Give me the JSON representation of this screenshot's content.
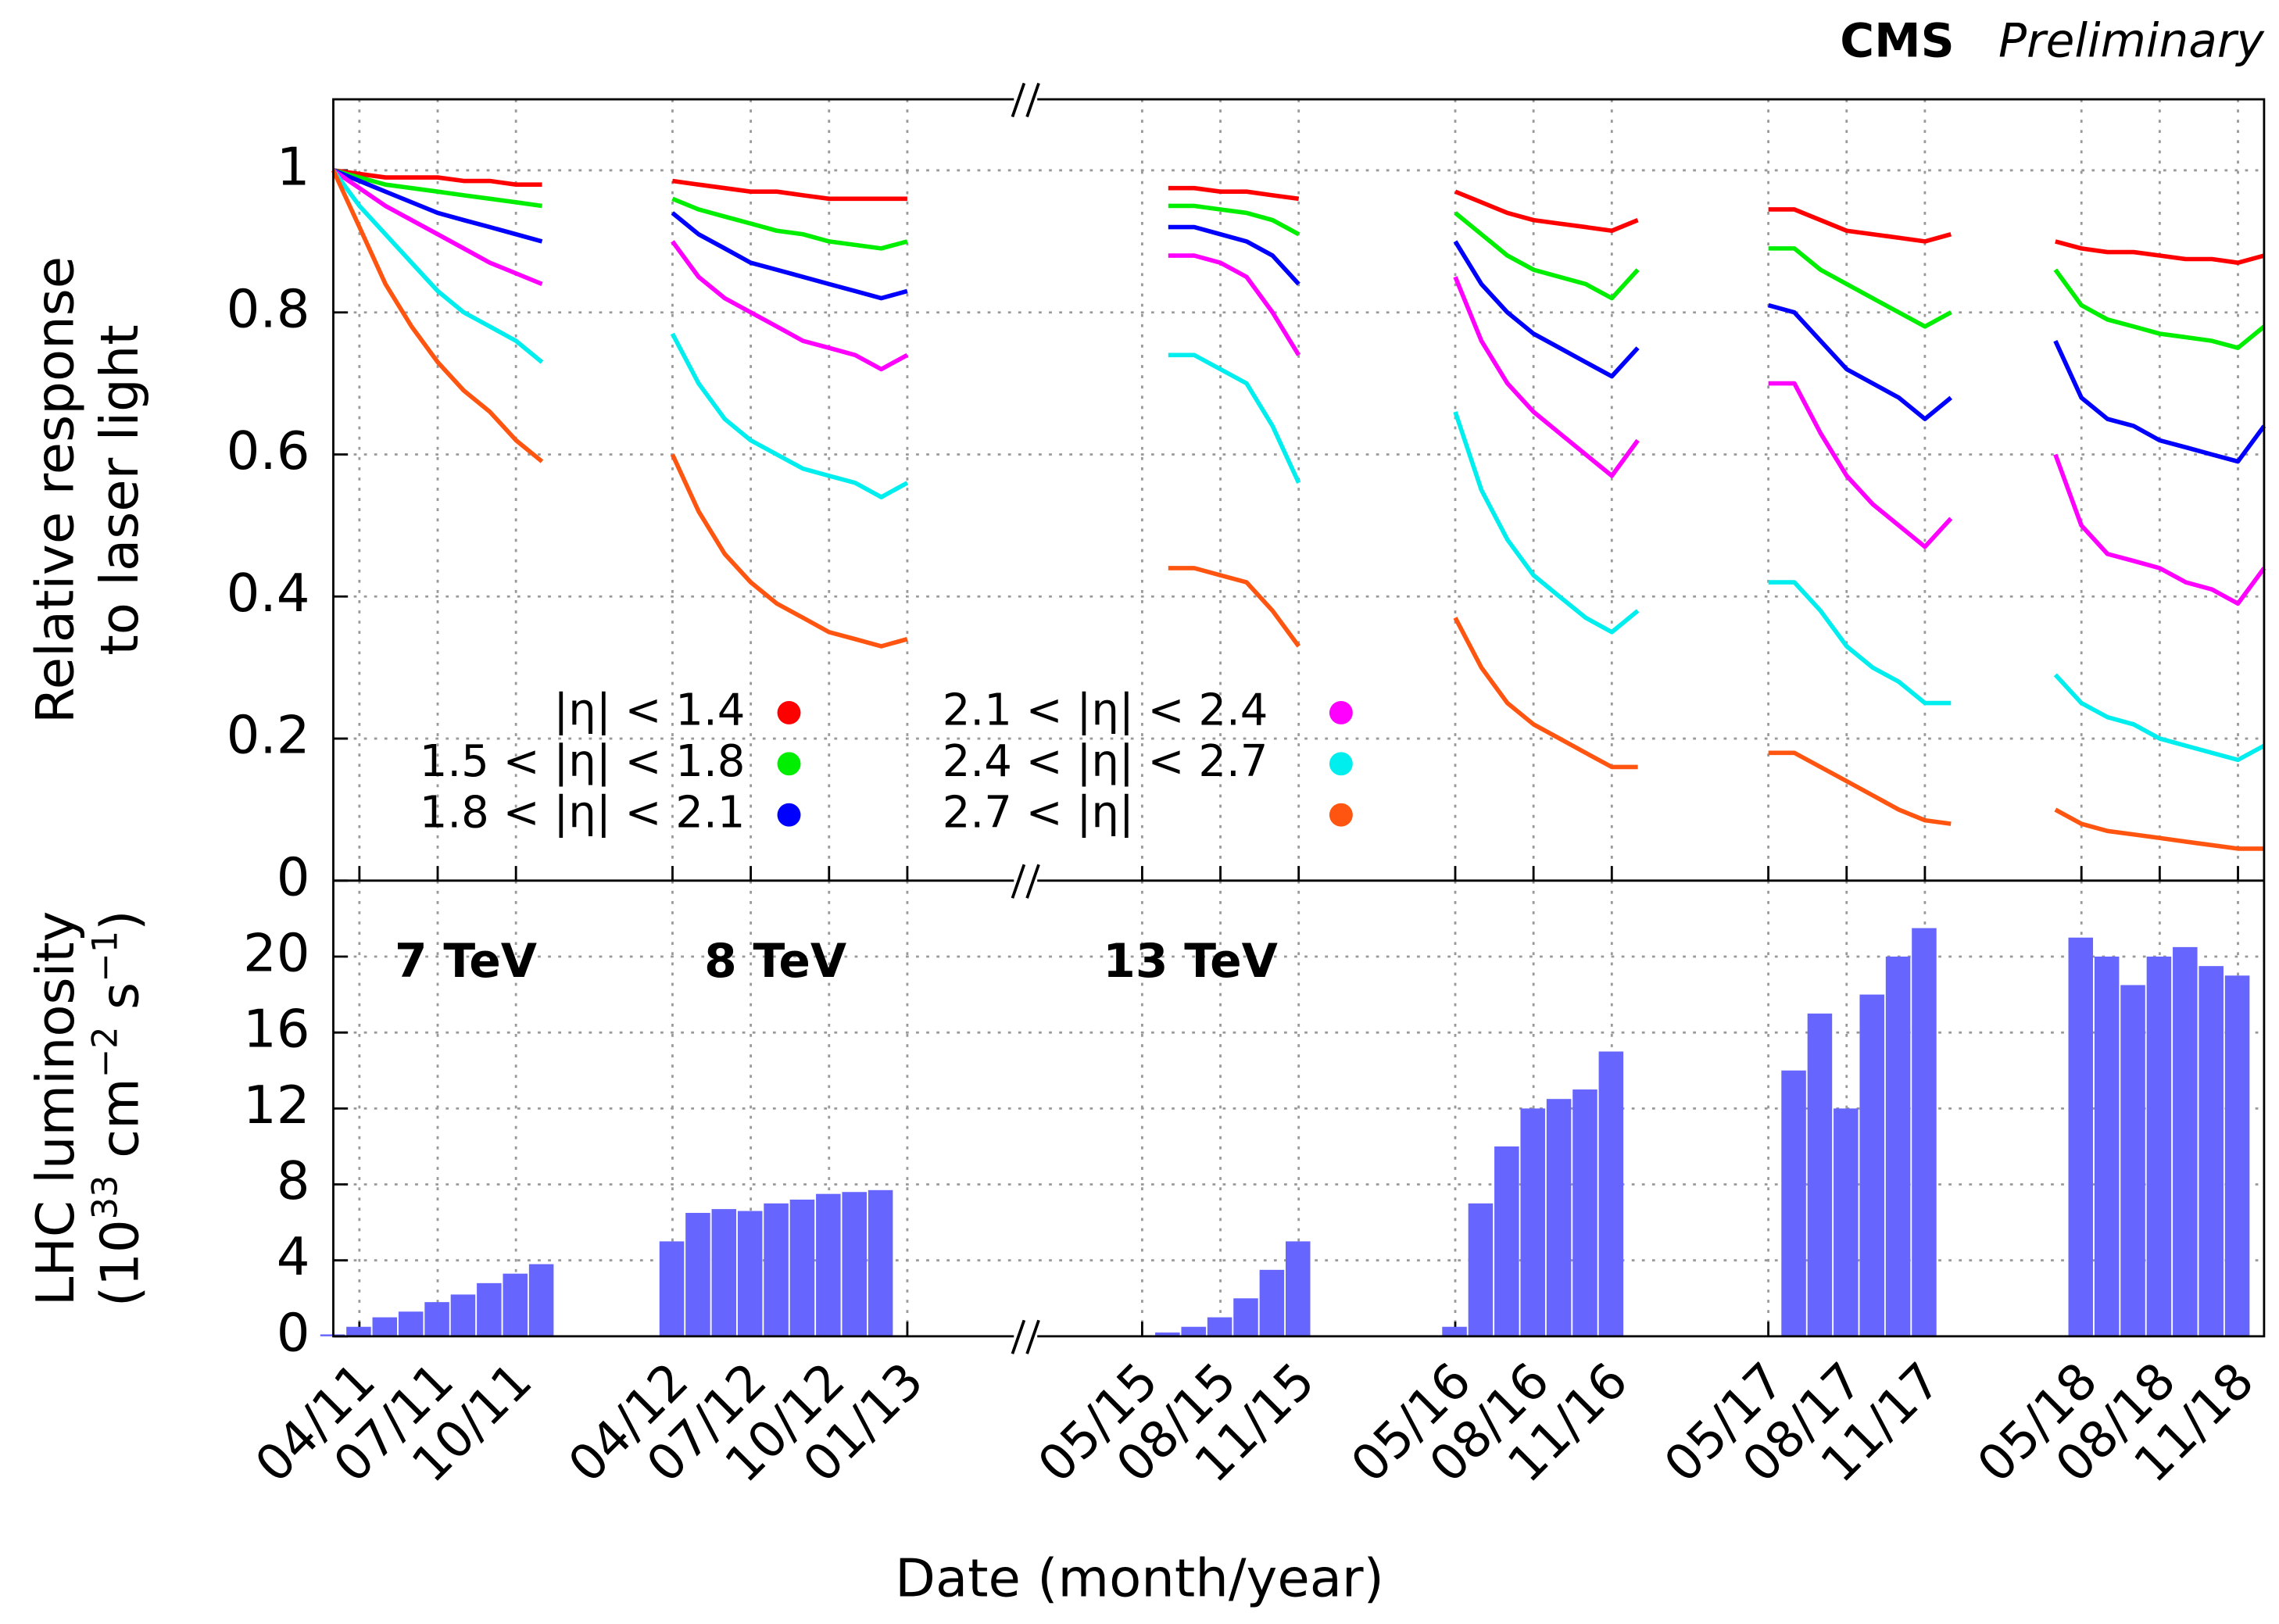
{
  "chart_data": [
    {
      "type": "line",
      "title": "CMS",
      "subtitle": "Preliminary",
      "ylabel": [
        "Relative response",
        "to laser light"
      ],
      "x": [
        "03/11",
        "04/11",
        "05/11",
        "06/11",
        "07/11",
        "08/11",
        "09/11",
        "10/11",
        "11/11",
        "02/12",
        "04/12",
        "05/12",
        "06/12",
        "07/12",
        "08/12",
        "09/12",
        "10/12",
        "11/12",
        "12/12",
        "01/13",
        "03/13",
        "06/15",
        "07/15",
        "08/15",
        "09/15",
        "10/15",
        "11/15",
        "02/16",
        "05/16",
        "06/16",
        "07/16",
        "08/16",
        "09/16",
        "10/16",
        "11/16",
        "12/16",
        "02/17",
        "05/17",
        "06/17",
        "07/17",
        "08/17",
        "09/17",
        "10/17",
        "11/17",
        "12/17",
        "02/18",
        "04/18",
        "05/18",
        "06/18",
        "07/18",
        "08/18",
        "09/18",
        "10/18",
        "11/18",
        "12/18"
      ],
      "xlim": [
        "03/11",
        "12/18"
      ],
      "xticks": [
        "04/11",
        "07/11",
        "10/11",
        "04/12",
        "07/12",
        "10/12",
        "01/13",
        "05/15",
        "08/15",
        "11/15",
        "05/16",
        "08/16",
        "11/16",
        "05/17",
        "08/17",
        "11/17",
        "05/18",
        "08/18",
        "11/18"
      ],
      "ylim": [
        0,
        1.1
      ],
      "yticks": [
        0,
        0.2,
        0.4,
        0.6,
        0.8,
        1
      ],
      "grid": true,
      "series": [
        {
          "name": "|η| < 1.4",
          "color": "#ff0000",
          "values": [
            1.0,
            0.995,
            0.99,
            0.99,
            0.99,
            0.985,
            0.985,
            0.98,
            0.98,
            null,
            0.985,
            0.98,
            0.975,
            0.97,
            0.97,
            0.965,
            0.96,
            0.96,
            0.96,
            0.96,
            null,
            0.975,
            0.975,
            0.97,
            0.97,
            0.965,
            0.96,
            null,
            0.97,
            0.955,
            0.94,
            0.93,
            0.925,
            0.92,
            0.915,
            0.93,
            null,
            0.945,
            0.945,
            0.93,
            0.915,
            0.91,
            0.905,
            0.9,
            0.91,
            null,
            0.9,
            0.89,
            0.885,
            0.885,
            0.88,
            0.875,
            0.875,
            0.87,
            0.88
          ]
        },
        {
          "name": "1.5 < |η| < 1.8",
          "color": "#00ee00",
          "values": [
            1.0,
            0.99,
            0.98,
            0.975,
            0.97,
            0.965,
            0.96,
            0.955,
            0.95,
            null,
            0.96,
            0.945,
            0.935,
            0.925,
            0.915,
            0.91,
            0.9,
            0.895,
            0.89,
            0.9,
            null,
            0.95,
            0.95,
            0.945,
            0.94,
            0.93,
            0.91,
            null,
            0.94,
            0.91,
            0.88,
            0.86,
            0.85,
            0.84,
            0.82,
            0.86,
            null,
            0.89,
            0.89,
            0.86,
            0.84,
            0.82,
            0.8,
            0.78,
            0.8,
            null,
            0.86,
            0.81,
            0.79,
            0.78,
            0.77,
            0.765,
            0.76,
            0.75,
            0.78
          ]
        },
        {
          "name": "1.8 < |η| < 2.1",
          "color": "#0000ff",
          "values": [
            1.0,
            0.985,
            0.97,
            0.955,
            0.94,
            0.93,
            0.92,
            0.91,
            0.9,
            null,
            0.94,
            0.91,
            0.89,
            0.87,
            0.86,
            0.85,
            0.84,
            0.83,
            0.82,
            0.83,
            null,
            0.92,
            0.92,
            0.91,
            0.9,
            0.88,
            0.84,
            null,
            0.9,
            0.84,
            0.8,
            0.77,
            0.75,
            0.73,
            0.71,
            0.75,
            null,
            0.81,
            0.8,
            0.76,
            0.72,
            0.7,
            0.68,
            0.65,
            0.68,
            null,
            0.76,
            0.68,
            0.65,
            0.64,
            0.62,
            0.61,
            0.6,
            0.59,
            0.64
          ]
        },
        {
          "name": "2.1 < |η| < 2.4",
          "color": "#ff00ff",
          "values": [
            1.0,
            0.975,
            0.95,
            0.93,
            0.91,
            0.89,
            0.87,
            0.855,
            0.84,
            null,
            0.9,
            0.85,
            0.82,
            0.8,
            0.78,
            0.76,
            0.75,
            0.74,
            0.72,
            0.74,
            null,
            0.88,
            0.88,
            0.87,
            0.85,
            0.8,
            0.74,
            null,
            0.85,
            0.76,
            0.7,
            0.66,
            0.63,
            0.6,
            0.57,
            0.62,
            null,
            0.7,
            0.7,
            0.63,
            0.57,
            0.53,
            0.5,
            0.47,
            0.51,
            null,
            0.6,
            0.5,
            0.46,
            0.45,
            0.44,
            0.42,
            0.41,
            0.39,
            0.44
          ]
        },
        {
          "name": "2.4 < |η| < 2.7",
          "color": "#00eeee",
          "values": [
            1.0,
            0.95,
            0.91,
            0.87,
            0.83,
            0.8,
            0.78,
            0.76,
            0.73,
            null,
            0.77,
            0.7,
            0.65,
            0.62,
            0.6,
            0.58,
            0.57,
            0.56,
            0.54,
            0.56,
            null,
            0.74,
            0.74,
            0.72,
            0.7,
            0.64,
            0.56,
            null,
            0.66,
            0.55,
            0.48,
            0.43,
            0.4,
            0.37,
            0.35,
            0.38,
            null,
            0.42,
            0.42,
            0.38,
            0.33,
            0.3,
            0.28,
            0.25,
            0.25,
            null,
            0.29,
            0.25,
            0.23,
            0.22,
            0.2,
            0.19,
            0.18,
            0.17,
            0.19
          ]
        },
        {
          "name": "2.7 < |η|",
          "color": "#ff5511",
          "values": [
            1.0,
            0.92,
            0.84,
            0.78,
            0.73,
            0.69,
            0.66,
            0.62,
            0.59,
            null,
            0.6,
            0.52,
            0.46,
            0.42,
            0.39,
            0.37,
            0.35,
            0.34,
            0.33,
            0.34,
            null,
            0.44,
            0.44,
            0.43,
            0.42,
            0.38,
            0.33,
            null,
            0.37,
            0.3,
            0.25,
            0.22,
            0.2,
            0.18,
            0.16,
            0.16,
            null,
            0.18,
            0.18,
            0.16,
            0.14,
            0.12,
            0.1,
            0.085,
            0.08,
            null,
            0.1,
            0.08,
            0.07,
            0.065,
            0.06,
            0.055,
            0.05,
            0.045,
            0.045
          ]
        }
      ]
    },
    {
      "type": "bar",
      "ylabel": [
        [
          "LHC luminosity"
        ],
        [
          "(10",
          "33",
          " cm",
          "−2",
          " s",
          "−1",
          ")"
        ]
      ],
      "xlabel": "Date (month/year)",
      "annotations": [
        "7 TeV",
        "8 TeV",
        "13 TeV"
      ],
      "x": [
        "03/11",
        "04/11",
        "05/11",
        "06/11",
        "07/11",
        "08/11",
        "09/11",
        "10/11",
        "11/11",
        "02/12",
        "04/12",
        "05/12",
        "06/12",
        "07/12",
        "08/12",
        "09/12",
        "10/12",
        "11/12",
        "12/12",
        "01/13",
        "03/13",
        "06/15",
        "07/15",
        "08/15",
        "09/15",
        "10/15",
        "11/15",
        "02/16",
        "05/16",
        "06/16",
        "07/16",
        "08/16",
        "09/16",
        "10/16",
        "11/16",
        "12/16",
        "02/17",
        "05/17",
        "06/17",
        "07/17",
        "08/17",
        "09/17",
        "10/17",
        "11/17",
        "12/17",
        "02/18",
        "04/18",
        "05/18",
        "06/18",
        "07/18",
        "08/18",
        "09/18",
        "10/18",
        "11/18",
        "12/18"
      ],
      "xlim": [
        "03/11",
        "12/18"
      ],
      "xticks": [
        "04/11",
        "07/11",
        "10/11",
        "04/12",
        "07/12",
        "10/12",
        "01/13",
        "05/15",
        "08/15",
        "11/15",
        "05/16",
        "08/16",
        "11/16",
        "05/17",
        "08/17",
        "11/17",
        "05/18",
        "08/18",
        "11/18"
      ],
      "ylim": [
        0,
        24
      ],
      "yticks": [
        0,
        4,
        8,
        12,
        16,
        20
      ],
      "grid": true,
      "color": "#6666ff",
      "values": [
        0.1,
        0.5,
        1,
        1.3,
        1.8,
        2.2,
        2.8,
        3.3,
        3.8,
        null,
        5,
        6.5,
        6.7,
        6.6,
        7,
        7.2,
        7.5,
        7.6,
        7.7,
        0,
        null,
        0.2,
        0.5,
        1,
        2,
        3.5,
        5,
        null,
        0.5,
        7,
        10,
        12,
        12.5,
        13,
        15,
        0,
        null,
        0,
        14,
        17,
        12,
        18,
        20,
        21.5,
        0,
        null,
        0,
        21,
        20,
        18.5,
        20,
        20.5,
        19.5,
        19,
        0
      ]
    }
  ]
}
